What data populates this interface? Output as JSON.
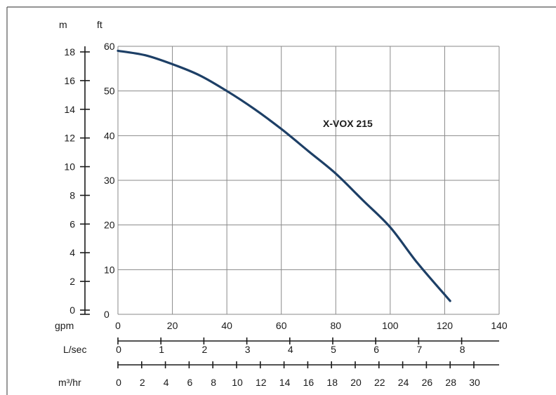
{
  "chart_data": {
    "type": "line",
    "series": [
      {
        "name": "X-VOX 215",
        "x": [
          0,
          10,
          20,
          30,
          40,
          50,
          60,
          70,
          80,
          90,
          100,
          110,
          122
        ],
        "y": [
          59,
          58,
          56,
          53.5,
          50,
          46,
          41.5,
          36.5,
          31.5,
          25.5,
          19.5,
          11.5,
          3
        ]
      }
    ],
    "x_axis": {
      "label": "gpm",
      "range": [
        0,
        140
      ],
      "ticks": [
        "0",
        "20",
        "40",
        "60",
        "80",
        "100",
        "120",
        "140"
      ]
    },
    "y_axis_ft": {
      "label": "ft",
      "range": [
        0,
        60
      ],
      "ticks": [
        "0",
        "10",
        "20",
        "30",
        "40",
        "50",
        "60"
      ]
    },
    "y_axis_m": {
      "label": "m",
      "ticks": [
        "0",
        "2",
        "4",
        "6",
        "8",
        "10",
        "12",
        "14",
        "16",
        "18"
      ]
    },
    "secondary_x_axes": [
      {
        "label": "L/sec",
        "ticks": [
          "0",
          "1",
          "2",
          "3",
          "4",
          "5",
          "6",
          "7",
          "8"
        ]
      },
      {
        "label": "m³/hr",
        "ticks": [
          "0",
          "2",
          "4",
          "6",
          "8",
          "10",
          "12",
          "14",
          "16",
          "18",
          "20",
          "22",
          "24",
          "26",
          "28",
          "30"
        ]
      }
    ],
    "grid": true,
    "colors": {
      "curve": "#1d3f66",
      "grid": "#8a8a8a"
    }
  }
}
